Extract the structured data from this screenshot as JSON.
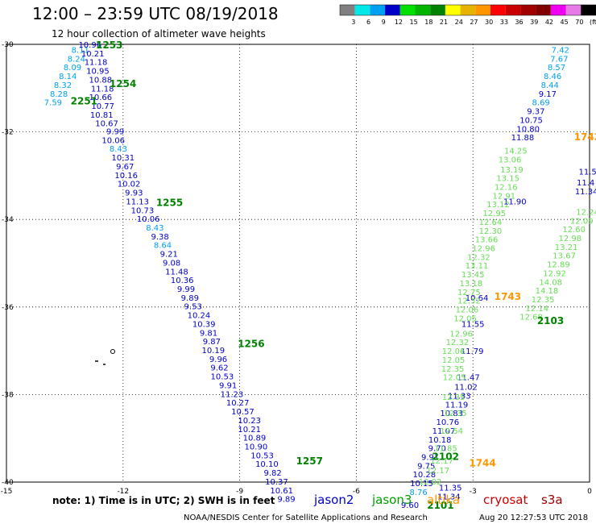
{
  "header": {
    "title": "12:00 – 23:59 UTC 08/19/2018",
    "subtitle": "12 hour collection of altimeter wave heights"
  },
  "color_scale": {
    "labels": [
      "3",
      "6",
      "9",
      "12",
      "15",
      "18",
      "21",
      "24",
      "27",
      "30",
      "33",
      "36",
      "39",
      "42",
      "45",
      "70",
      "(ft)"
    ],
    "colors": [
      "#808080",
      "#00e8e8",
      "#00a0f0",
      "#0000c8",
      "#00e000",
      "#00b400",
      "#008200",
      "#ffff00",
      "#e6b400",
      "#ff9600",
      "#ff0000",
      "#c80000",
      "#a00000",
      "#800000",
      "#f000f0",
      "#e67ae6",
      "#000000"
    ]
  },
  "footer": {
    "note": "note:  1) Time is in UTC; 2) SWH is in feet",
    "satellites": [
      {
        "name": "jason2",
        "color": "#0000c8"
      },
      {
        "name": "jason3",
        "color": "#00a000"
      },
      {
        "name": "altika",
        "color": "#ff9600"
      },
      {
        "name": "cryosat",
        "color": "#c80000"
      },
      {
        "name": "s3a",
        "color": "#a00000"
      }
    ],
    "credit": "NOAA/NESDIS Center for Satellite Applications and Research",
    "timestamp": "Aug 20 12:27:53 UTC 2018"
  },
  "chart_data": {
    "type": "scatter",
    "title": "12:00 – 23:59 UTC 08/19/2018",
    "subtitle": "12 hour collection of altimeter wave heights",
    "xlim": [
      -15,
      0
    ],
    "ylim": [
      -40,
      -30
    ],
    "x_ticks": [
      -15,
      -12,
      -9,
      -6,
      -3,
      0
    ],
    "y_ticks": [
      -30,
      -32,
      -34,
      -36,
      -38,
      -40
    ],
    "grid": true,
    "swh_units": "ft",
    "series": [
      {
        "name": "jason2",
        "points": [
          {
            "lon": -13.1,
            "lat": -30.12,
            "swh": "8.11"
          },
          {
            "lon": -13.2,
            "lat": -30.32,
            "swh": "8.24"
          },
          {
            "lon": -13.3,
            "lat": -30.52,
            "swh": "8.09"
          },
          {
            "lon": -13.42,
            "lat": -30.72,
            "swh": "8.14"
          },
          {
            "lon": -13.55,
            "lat": -30.92,
            "swh": "8.32"
          },
          {
            "lon": -13.65,
            "lat": -31.12,
            "swh": "8.28"
          },
          {
            "lon": -13.8,
            "lat": -31.32,
            "swh": "7.59"
          },
          {
            "lon": -12.85,
            "lat": -30.0,
            "swh": "10.96"
          },
          {
            "lon": -12.78,
            "lat": -30.2,
            "swh": "10.21"
          },
          {
            "lon": -12.7,
            "lat": -30.4,
            "swh": "11.18"
          },
          {
            "lon": -12.65,
            "lat": -30.6,
            "swh": "10.95"
          },
          {
            "lon": -12.58,
            "lat": -30.8,
            "swh": "10.88"
          },
          {
            "lon": -12.53,
            "lat": -31.0,
            "swh": "11.18"
          },
          {
            "lon": -12.58,
            "lat": -31.2,
            "swh": "10.66"
          },
          {
            "lon": -12.52,
            "lat": -31.4,
            "swh": "10.77"
          },
          {
            "lon": -12.55,
            "lat": -31.6,
            "swh": "10.81"
          },
          {
            "lon": -12.42,
            "lat": -31.8,
            "swh": "10.67"
          },
          {
            "lon": -12.2,
            "lat": -31.98,
            "swh": "9.99"
          },
          {
            "lon": -12.25,
            "lat": -32.18,
            "swh": "10.06"
          },
          {
            "lon": -12.12,
            "lat": -32.38,
            "swh": "8.43"
          },
          {
            "lon": -12.0,
            "lat": -32.58,
            "swh": "10.31"
          },
          {
            "lon": -11.95,
            "lat": -32.78,
            "swh": "9.67"
          },
          {
            "lon": -11.92,
            "lat": -32.98,
            "swh": "10.16"
          },
          {
            "lon": -11.85,
            "lat": -33.18,
            "swh": "10.02"
          },
          {
            "lon": -11.72,
            "lat": -33.38,
            "swh": "9.93"
          },
          {
            "lon": -11.63,
            "lat": -33.58,
            "swh": "11.13"
          },
          {
            "lon": -11.5,
            "lat": -33.78,
            "swh": "10.73"
          },
          {
            "lon": -11.35,
            "lat": -33.98,
            "swh": "10.06"
          },
          {
            "lon": -11.18,
            "lat": -34.18,
            "swh": "8.43"
          },
          {
            "lon": -11.05,
            "lat": -34.38,
            "swh": "9.38"
          },
          {
            "lon": -10.98,
            "lat": -34.58,
            "swh": "8.64"
          },
          {
            "lon": -10.82,
            "lat": -34.78,
            "swh": "9.21"
          },
          {
            "lon": -10.75,
            "lat": -34.98,
            "swh": "9.08"
          },
          {
            "lon": -10.62,
            "lat": -35.18,
            "swh": "11.48"
          },
          {
            "lon": -10.48,
            "lat": -35.38,
            "swh": "10.36"
          },
          {
            "lon": -10.38,
            "lat": -35.58,
            "swh": "9.99"
          },
          {
            "lon": -10.28,
            "lat": -35.78,
            "swh": "9.89"
          },
          {
            "lon": -10.2,
            "lat": -35.98,
            "swh": "9.53"
          },
          {
            "lon": -10.05,
            "lat": -36.18,
            "swh": "10.24"
          },
          {
            "lon": -9.92,
            "lat": -36.38,
            "swh": "10.39"
          },
          {
            "lon": -9.8,
            "lat": -36.58,
            "swh": "9.81"
          },
          {
            "lon": -9.72,
            "lat": -36.78,
            "swh": "9.87"
          },
          {
            "lon": -9.68,
            "lat": -36.98,
            "swh": "10.19"
          },
          {
            "lon": -9.55,
            "lat": -37.18,
            "swh": "9.96"
          },
          {
            "lon": -9.52,
            "lat": -37.38,
            "swh": "9.62"
          },
          {
            "lon": -9.45,
            "lat": -37.58,
            "swh": "10.53"
          },
          {
            "lon": -9.3,
            "lat": -37.78,
            "swh": "9.91"
          },
          {
            "lon": -9.2,
            "lat": -37.98,
            "swh": "11.23"
          },
          {
            "lon": -9.05,
            "lat": -38.18,
            "swh": "10.27"
          },
          {
            "lon": -8.92,
            "lat": -38.38,
            "swh": "10.57"
          },
          {
            "lon": -8.75,
            "lat": -38.58,
            "swh": "10.23"
          },
          {
            "lon": -8.75,
            "lat": -38.78,
            "swh": "10.21"
          },
          {
            "lon": -8.62,
            "lat": -38.98,
            "swh": "10.89"
          },
          {
            "lon": -8.58,
            "lat": -39.18,
            "swh": "10.90"
          },
          {
            "lon": -8.42,
            "lat": -39.38,
            "swh": "10.53"
          },
          {
            "lon": -8.3,
            "lat": -39.58,
            "swh": "10.10"
          },
          {
            "lon": -8.15,
            "lat": -39.78,
            "swh": "9.82"
          },
          {
            "lon": -8.05,
            "lat": -39.98,
            "swh": "10.37"
          },
          {
            "lon": -7.92,
            "lat": -40.18,
            "swh": "10.61"
          },
          {
            "lon": -7.8,
            "lat": -40.38,
            "swh": "9.89"
          },
          {
            "lon": -0.75,
            "lat": -30.12,
            "swh": "7.42"
          },
          {
            "lon": -0.78,
            "lat": -30.32,
            "swh": "7.67"
          },
          {
            "lon": -0.85,
            "lat": -30.52,
            "swh": "8.57"
          },
          {
            "lon": -0.95,
            "lat": -30.72,
            "swh": "8.46"
          },
          {
            "lon": -1.02,
            "lat": -30.92,
            "swh": "8.44"
          },
          {
            "lon": -1.08,
            "lat": -31.12,
            "swh": "9.17"
          },
          {
            "lon": -1.25,
            "lat": -31.32,
            "swh": "8.69"
          },
          {
            "lon": -1.38,
            "lat": -31.52,
            "swh": "9.37"
          },
          {
            "lon": -1.5,
            "lat": -31.72,
            "swh": "10.75"
          },
          {
            "lon": -1.58,
            "lat": -31.92,
            "swh": "10.80"
          },
          {
            "lon": -1.72,
            "lat": -32.12,
            "swh": "11.88"
          },
          {
            "lon": -1.92,
            "lat": -33.58,
            "swh": "11.90"
          },
          {
            "lon": -2.9,
            "lat": -35.78,
            "swh": "10.64"
          },
          {
            "lon": -3.0,
            "lat": -36.38,
            "swh": "11.55"
          },
          {
            "lon": -3.02,
            "lat": -37.0,
            "swh": "11.79"
          },
          {
            "lon": -3.12,
            "lat": -37.6,
            "swh": "11.47"
          },
          {
            "lon": -3.18,
            "lat": -37.82,
            "swh": "11.02"
          },
          {
            "lon": -3.35,
            "lat": -38.02,
            "swh": "11.33"
          },
          {
            "lon": -3.42,
            "lat": -38.22,
            "swh": "11.19"
          },
          {
            "lon": -3.55,
            "lat": -38.42,
            "swh": "10.83"
          },
          {
            "lon": -3.65,
            "lat": -38.62,
            "swh": "10.76"
          },
          {
            "lon": -3.75,
            "lat": -38.82,
            "swh": "11.07"
          },
          {
            "lon": -3.85,
            "lat": -39.02,
            "swh": "10.18"
          },
          {
            "lon": -3.92,
            "lat": -39.22,
            "swh": "9.70"
          },
          {
            "lon": -4.1,
            "lat": -39.42,
            "swh": "9.91"
          },
          {
            "lon": -4.2,
            "lat": -39.62,
            "swh": "9.75"
          },
          {
            "lon": -4.25,
            "lat": -39.82,
            "swh": "10.28"
          },
          {
            "lon": -4.32,
            "lat": -40.02,
            "swh": "10.15"
          },
          {
            "lon": -3.58,
            "lat": -40.12,
            "swh": "11.35"
          },
          {
            "lon": -4.4,
            "lat": -40.22,
            "swh": "8.76"
          },
          {
            "lon": -3.62,
            "lat": -40.32,
            "swh": "11.34"
          },
          {
            "lon": -4.62,
            "lat": -40.52,
            "swh": "9.60"
          },
          {
            "lon": -0.05,
            "lat": -32.9,
            "swh": "11.5"
          },
          {
            "lon": -0.1,
            "lat": -33.15,
            "swh": "11.4"
          },
          {
            "lon": -0.08,
            "lat": -33.35,
            "swh": "11.34"
          }
        ]
      },
      {
        "name": "jason3",
        "points": [
          {
            "lon": -1.9,
            "lat": -32.42,
            "swh": "14.25"
          },
          {
            "lon": -2.05,
            "lat": -32.62,
            "swh": "13.06"
          },
          {
            "lon": -2.0,
            "lat": -32.85,
            "swh": "13.19"
          },
          {
            "lon": -2.1,
            "lat": -33.05,
            "swh": "13.15"
          },
          {
            "lon": -2.15,
            "lat": -33.25,
            "swh": "12.16"
          },
          {
            "lon": -2.2,
            "lat": -33.45,
            "swh": "12.91"
          },
          {
            "lon": -2.35,
            "lat": -33.65,
            "swh": "13.12"
          },
          {
            "lon": -2.45,
            "lat": -33.85,
            "swh": "12.95"
          },
          {
            "lon": -2.55,
            "lat": -34.05,
            "swh": "12.64"
          },
          {
            "lon": -2.55,
            "lat": -34.25,
            "swh": "12.30"
          },
          {
            "lon": -2.65,
            "lat": -34.45,
            "swh": "13.66"
          },
          {
            "lon": -2.72,
            "lat": -34.65,
            "swh": "12.96"
          },
          {
            "lon": -2.85,
            "lat": -34.85,
            "swh": "12.32"
          },
          {
            "lon": -2.9,
            "lat": -35.05,
            "swh": "13.11"
          },
          {
            "lon": -3.0,
            "lat": -35.25,
            "swh": "13.45"
          },
          {
            "lon": -3.05,
            "lat": -35.45,
            "swh": "13.18"
          },
          {
            "lon": -3.1,
            "lat": -35.65,
            "swh": "12.75"
          },
          {
            "lon": -3.1,
            "lat": -35.85,
            "swh": "12.32"
          },
          {
            "lon": -3.15,
            "lat": -36.05,
            "swh": "12.06"
          },
          {
            "lon": -3.2,
            "lat": -36.25,
            "swh": "12.05"
          },
          {
            "lon": -0.05,
            "lat": -33.82,
            "swh": "12.24"
          },
          {
            "lon": -0.2,
            "lat": -34.02,
            "swh": "12.09"
          },
          {
            "lon": -0.4,
            "lat": -34.22,
            "swh": "12.60"
          },
          {
            "lon": -0.5,
            "lat": -34.42,
            "swh": "12.98"
          },
          {
            "lon": -0.6,
            "lat": -34.62,
            "swh": "13.21"
          },
          {
            "lon": -0.65,
            "lat": -34.82,
            "swh": "13.67"
          },
          {
            "lon": -0.8,
            "lat": -35.02,
            "swh": "12.89"
          },
          {
            "lon": -0.9,
            "lat": -35.22,
            "swh": "12.92"
          },
          {
            "lon": -1.0,
            "lat": -35.42,
            "swh": "14.08"
          },
          {
            "lon": -1.1,
            "lat": -35.62,
            "swh": "14.18"
          },
          {
            "lon": -1.2,
            "lat": -35.82,
            "swh": "12.35"
          },
          {
            "lon": -1.35,
            "lat": -36.02,
            "swh": "12.14"
          },
          {
            "lon": -1.5,
            "lat": -36.22,
            "swh": "12.68"
          },
          {
            "lon": -3.3,
            "lat": -36.6,
            "swh": "12.96"
          },
          {
            "lon": -3.4,
            "lat": -36.8,
            "swh": "12.32"
          },
          {
            "lon": -3.5,
            "lat": -37.0,
            "swh": "12.06"
          },
          {
            "lon": -3.5,
            "lat": -37.2,
            "swh": "12.05"
          },
          {
            "lon": -3.52,
            "lat": -37.4,
            "swh": "12.35"
          },
          {
            "lon": -3.48,
            "lat": -37.6,
            "swh": "12.05"
          },
          {
            "lon": -3.5,
            "lat": -38.05,
            "swh": "12.35"
          },
          {
            "lon": -3.45,
            "lat": -38.42,
            "swh": "12.35"
          },
          {
            "lon": -3.55,
            "lat": -38.82,
            "swh": "12.54"
          },
          {
            "lon": -3.7,
            "lat": -39.22,
            "swh": "11.85"
          },
          {
            "lon": -3.8,
            "lat": -39.5,
            "swh": "12.17"
          },
          {
            "lon": -3.9,
            "lat": -39.72,
            "swh": "12.17"
          },
          {
            "lon": -4.1,
            "lat": -39.98,
            "swh": "12.02"
          }
        ]
      },
      {
        "name": "altika",
        "points": []
      }
    ],
    "pass_labels": [
      {
        "text": "1253",
        "lon": -12.7,
        "lat": -30.0,
        "series": "jason2"
      },
      {
        "text": "1254",
        "lon": -12.35,
        "lat": -30.88,
        "series": "jason2"
      },
      {
        "text": "2251",
        "lon": -13.35,
        "lat": -31.28,
        "series": "jason2"
      },
      {
        "text": "1255",
        "lon": -11.15,
        "lat": -33.6,
        "series": "jason2"
      },
      {
        "text": "1256",
        "lon": -9.05,
        "lat": -36.82,
        "series": "jason2"
      },
      {
        "text": "1257",
        "lon": -7.55,
        "lat": -39.5,
        "series": "jason2"
      },
      {
        "text": "2101",
        "lon": -4.18,
        "lat": -40.52,
        "series": "jason2"
      },
      {
        "text": "2102",
        "lon": -4.05,
        "lat": -39.4,
        "series": "jason2"
      },
      {
        "text": "2103",
        "lon": -1.35,
        "lat": -36.3,
        "series": "jason2"
      },
      {
        "text": "1742",
        "lon": -0.4,
        "lat": -32.1,
        "series": "altika"
      },
      {
        "text": "1743",
        "lon": -2.45,
        "lat": -35.75,
        "series": "altika"
      },
      {
        "text": "1744",
        "lon": -3.1,
        "lat": -39.55,
        "series": "altika"
      }
    ]
  }
}
